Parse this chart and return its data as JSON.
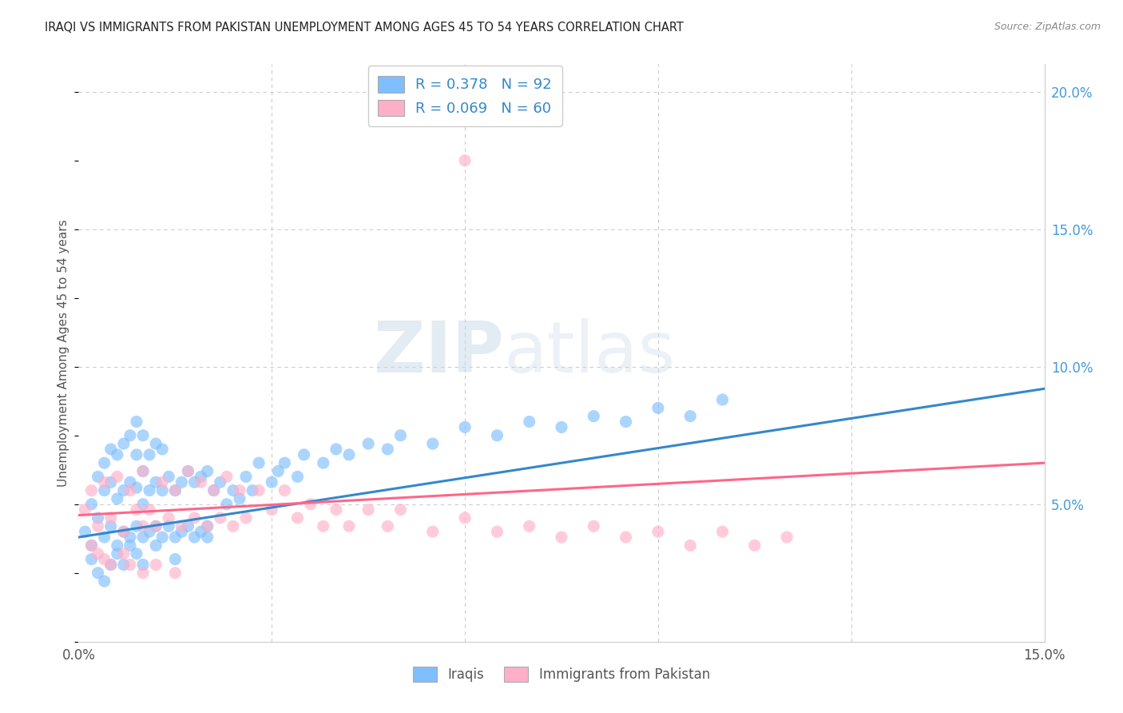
{
  "title": "IRAQI VS IMMIGRANTS FROM PAKISTAN UNEMPLOYMENT AMONG AGES 45 TO 54 YEARS CORRELATION CHART",
  "source": "Source: ZipAtlas.com",
  "ylabel": "Unemployment Among Ages 45 to 54 years",
  "xmin": 0.0,
  "xmax": 0.15,
  "ymin": 0.0,
  "ymax": 0.21,
  "iraqis_color": "#7fbfff",
  "pakistan_color": "#ffb0c8",
  "iraqis_line_color": "#3388cc",
  "pakistan_line_color": "#ff6688",
  "iraqis_line_start_y": 0.038,
  "iraqis_line_end_y": 0.092,
  "pakistan_line_start_y": 0.046,
  "pakistan_line_end_y": 0.065,
  "watermark_text": "ZIPatlas",
  "legend_R1": "0.378",
  "legend_N1": "92",
  "legend_R2": "0.069",
  "legend_N2": "60",
  "iraqis_scatter_x": [
    0.001,
    0.002,
    0.002,
    0.003,
    0.003,
    0.004,
    0.004,
    0.004,
    0.005,
    0.005,
    0.005,
    0.006,
    0.006,
    0.006,
    0.007,
    0.007,
    0.007,
    0.008,
    0.008,
    0.008,
    0.009,
    0.009,
    0.009,
    0.009,
    0.01,
    0.01,
    0.01,
    0.01,
    0.011,
    0.011,
    0.011,
    0.012,
    0.012,
    0.012,
    0.013,
    0.013,
    0.013,
    0.014,
    0.014,
    0.015,
    0.015,
    0.016,
    0.016,
    0.017,
    0.017,
    0.018,
    0.018,
    0.019,
    0.019,
    0.02,
    0.02,
    0.021,
    0.022,
    0.023,
    0.024,
    0.025,
    0.026,
    0.027,
    0.028,
    0.03,
    0.031,
    0.032,
    0.034,
    0.035,
    0.038,
    0.04,
    0.042,
    0.045,
    0.048,
    0.05,
    0.055,
    0.06,
    0.065,
    0.07,
    0.075,
    0.08,
    0.085,
    0.09,
    0.095,
    0.1,
    0.002,
    0.003,
    0.004,
    0.005,
    0.006,
    0.007,
    0.008,
    0.009,
    0.01,
    0.012,
    0.015,
    0.02
  ],
  "iraqis_scatter_y": [
    0.04,
    0.05,
    0.035,
    0.045,
    0.06,
    0.038,
    0.055,
    0.065,
    0.042,
    0.058,
    0.07,
    0.035,
    0.052,
    0.068,
    0.04,
    0.055,
    0.072,
    0.038,
    0.058,
    0.075,
    0.042,
    0.056,
    0.068,
    0.08,
    0.038,
    0.05,
    0.062,
    0.075,
    0.04,
    0.055,
    0.068,
    0.042,
    0.058,
    0.072,
    0.038,
    0.055,
    0.07,
    0.042,
    0.06,
    0.038,
    0.055,
    0.04,
    0.058,
    0.042,
    0.062,
    0.038,
    0.058,
    0.04,
    0.06,
    0.042,
    0.062,
    0.055,
    0.058,
    0.05,
    0.055,
    0.052,
    0.06,
    0.055,
    0.065,
    0.058,
    0.062,
    0.065,
    0.06,
    0.068,
    0.065,
    0.07,
    0.068,
    0.072,
    0.07,
    0.075,
    0.072,
    0.078,
    0.075,
    0.08,
    0.078,
    0.082,
    0.08,
    0.085,
    0.082,
    0.088,
    0.03,
    0.025,
    0.022,
    0.028,
    0.032,
    0.028,
    0.035,
    0.032,
    0.028,
    0.035,
    0.03,
    0.038
  ],
  "pakistan_scatter_x": [
    0.001,
    0.002,
    0.003,
    0.004,
    0.005,
    0.006,
    0.007,
    0.008,
    0.009,
    0.01,
    0.01,
    0.011,
    0.012,
    0.013,
    0.014,
    0.015,
    0.016,
    0.017,
    0.018,
    0.019,
    0.02,
    0.021,
    0.022,
    0.023,
    0.024,
    0.025,
    0.026,
    0.028,
    0.03,
    0.032,
    0.034,
    0.036,
    0.038,
    0.04,
    0.042,
    0.045,
    0.048,
    0.05,
    0.055,
    0.06,
    0.065,
    0.07,
    0.075,
    0.08,
    0.085,
    0.09,
    0.095,
    0.1,
    0.105,
    0.11,
    0.002,
    0.003,
    0.004,
    0.005,
    0.007,
    0.008,
    0.01,
    0.012,
    0.015,
    0.06
  ],
  "pakistan_scatter_y": [
    0.048,
    0.055,
    0.042,
    0.058,
    0.045,
    0.06,
    0.04,
    0.055,
    0.048,
    0.042,
    0.062,
    0.048,
    0.042,
    0.058,
    0.045,
    0.055,
    0.042,
    0.062,
    0.045,
    0.058,
    0.042,
    0.055,
    0.045,
    0.06,
    0.042,
    0.055,
    0.045,
    0.055,
    0.048,
    0.055,
    0.045,
    0.05,
    0.042,
    0.048,
    0.042,
    0.048,
    0.042,
    0.048,
    0.04,
    0.045,
    0.04,
    0.042,
    0.038,
    0.042,
    0.038,
    0.04,
    0.035,
    0.04,
    0.035,
    0.038,
    0.035,
    0.032,
    0.03,
    0.028,
    0.032,
    0.028,
    0.025,
    0.028,
    0.025,
    0.175
  ]
}
